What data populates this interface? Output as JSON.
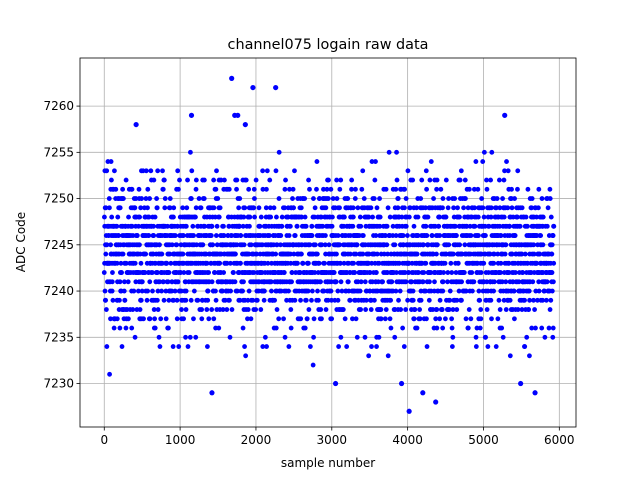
{
  "chart_data": {
    "type": "scatter",
    "title": "channel075 logain raw data",
    "xlabel": "sample number",
    "ylabel": "ADC Code",
    "xlim": [
      -320,
      6220
    ],
    "ylim": [
      7225.3,
      7265.2
    ],
    "xticks": [
      0,
      1000,
      2000,
      3000,
      4000,
      5000,
      6000
    ],
    "yticks": [
      7230,
      7235,
      7240,
      7245,
      7250,
      7255,
      7260
    ],
    "grid": true,
    "marker_color": "#0000ff",
    "n_samples": 5930,
    "typical_band": [
      7232,
      7255
    ],
    "notable_points": [
      {
        "x": 1680,
        "y": 7263
      },
      {
        "x": 1960,
        "y": 7262
      },
      {
        "x": 2260,
        "y": 7262
      },
      {
        "x": 1150,
        "y": 7259
      },
      {
        "x": 1720,
        "y": 7259
      },
      {
        "x": 1760,
        "y": 7259
      },
      {
        "x": 5280,
        "y": 7259
      },
      {
        "x": 1860,
        "y": 7258
      },
      {
        "x": 420,
        "y": 7258
      },
      {
        "x": 1420,
        "y": 7229
      },
      {
        "x": 4020,
        "y": 7227
      },
      {
        "x": 4370,
        "y": 7228
      },
      {
        "x": 4200,
        "y": 7229
      },
      {
        "x": 5680,
        "y": 7229
      },
      {
        "x": 3050,
        "y": 7230
      },
      {
        "x": 3920,
        "y": 7230
      },
      {
        "x": 5490,
        "y": 7230
      }
    ]
  }
}
